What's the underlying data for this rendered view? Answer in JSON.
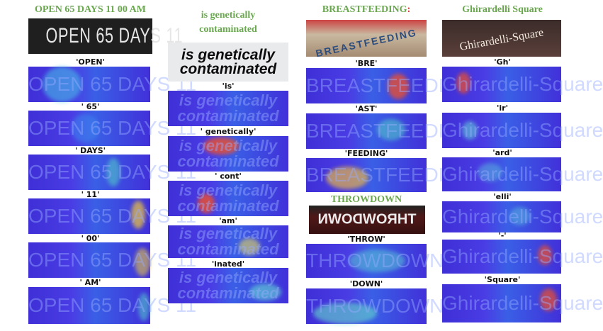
{
  "titles": {
    "c1": "OPEN 65 DAYS 11 00 AM",
    "c2_line1": "is genetically",
    "c2_line2": "contaminated",
    "c3_main": "BREASTFEEDING",
    "c3_colon": ":",
    "c3b": "THROWDOWN",
    "c4": "Ghirardelli Square"
  },
  "images": {
    "c1": "OPEN 65 DAYS 11",
    "c2_line1": "is genetically",
    "c2_line2": "contaminated",
    "c3": "BREASTFEEDING",
    "c3b": "THROWDOWN",
    "c4": "Ghirardelli-Square"
  },
  "labels": {
    "c1": [
      "'OPEN'",
      "' 65'",
      "' DAYS'",
      "' 11'",
      "' 00'",
      "' AM'"
    ],
    "c2": [
      "'is'",
      "' genetically'",
      "' cont'",
      "'am'",
      "'inated'"
    ],
    "c3": [
      "'BRE'",
      "'AST'",
      "'FEEDING'",
      "'THROW'",
      "'DOWN'"
    ],
    "c4": [
      "'Gh'",
      "'ir'",
      "'ard'",
      "'elli'",
      "'-'",
      "'Square'"
    ]
  }
}
